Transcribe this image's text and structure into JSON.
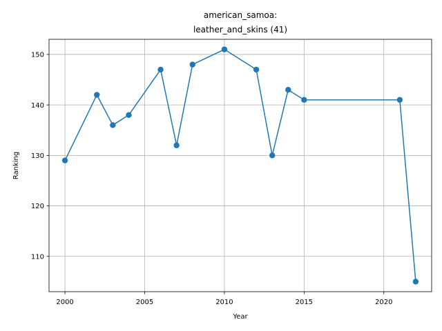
{
  "chart_data": {
    "type": "line",
    "title_line1": "american_samoa:",
    "title_line2": "leather_and_skins (41)",
    "xlabel": "Year",
    "ylabel": "Ranking",
    "xlim": [
      1999,
      2023
    ],
    "ylim": [
      103,
      153
    ],
    "xticks": [
      2000,
      2005,
      2010,
      2015,
      2020
    ],
    "yticks": [
      110,
      120,
      130,
      140,
      150
    ],
    "grid": true,
    "series": [
      {
        "color": "#1f77b4",
        "marker": "circle",
        "x": [
          2000,
          2002,
          2003,
          2004,
          2006,
          2007,
          2008,
          2010,
          2012,
          2013,
          2014,
          2015,
          2021,
          2022
        ],
        "y": [
          129,
          142,
          136,
          138,
          147,
          132,
          148,
          151,
          147,
          130,
          143,
          141,
          141,
          105
        ]
      }
    ]
  }
}
